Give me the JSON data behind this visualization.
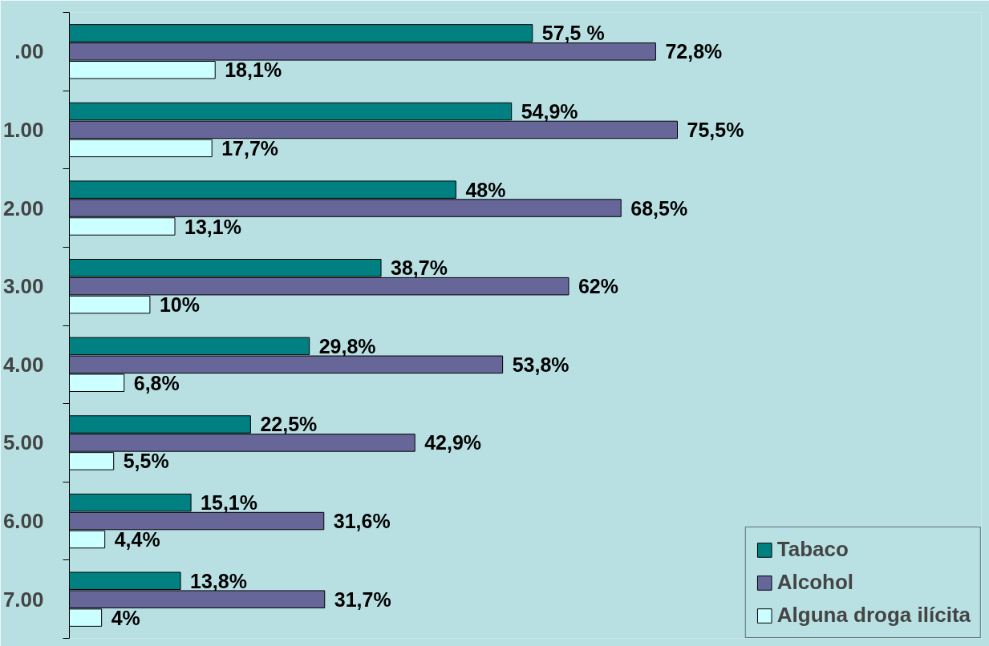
{
  "chart_data": {
    "type": "bar",
    "orientation": "horizontal",
    "categories": [
      ".00",
      "1.00",
      "2.00",
      "3.00",
      "4.00",
      "5.00",
      "6.00",
      "7.00"
    ],
    "series": [
      {
        "name": "Tabaco",
        "color": "#008080",
        "values": [
          57.5,
          54.9,
          48,
          38.7,
          29.8,
          22.5,
          15.1,
          13.8
        ],
        "value_labels": [
          "57,5 %",
          "54,9%",
          "48%",
          "38,7%",
          "29,8%",
          "22,5%",
          "15,1%",
          "13,8%"
        ]
      },
      {
        "name": "Alcohol",
        "color": "#666699",
        "values": [
          72.8,
          75.5,
          68.5,
          62,
          53.8,
          42.9,
          31.6,
          31.7
        ],
        "value_labels": [
          "72,8%",
          "75,5%",
          "68,5%",
          "62%",
          "53,8%",
          "42,9%",
          "31,6%",
          "31,7%"
        ]
      },
      {
        "name": "Alguna droga ilícita",
        "color": "#ccffff",
        "values": [
          18.1,
          17.7,
          13.1,
          10,
          6.8,
          5.5,
          4.4,
          4
        ],
        "value_labels": [
          "18,1%",
          "17,7%",
          "13,1%",
          "10%",
          "6,8%",
          "5,5%",
          "4,4%",
          "4%"
        ]
      }
    ],
    "legend": "bottom right",
    "grid": false
  }
}
